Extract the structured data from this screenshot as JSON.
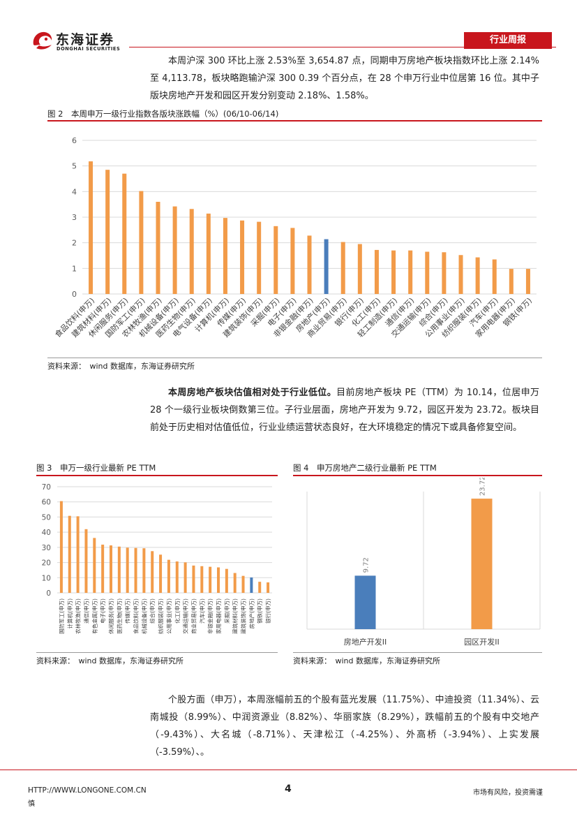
{
  "header": {
    "logo_cn": "东海证券",
    "logo_en": "DONGHAI SECURITIES",
    "report_type": "行业周报"
  },
  "intro": {
    "text": "本周沪深 300 环比上涨 2.53%至 3,654.87 点，同期申万房地产板块指数环比上涨 2.14%至 4,113.78，板块略跑输沪深 300 0.39 个百分点，在 28 个申万行业中位居第 16 位。其中子版块房地产开发和园区开发分别变动 2.18%、1.58%。"
  },
  "fig2": {
    "title": "图 2　本周申万一级行业指数各版块涨跌幅（%）(06/10-06/14)",
    "source": "资料来源：　wind 数据库，东海证券研究所"
  },
  "valuation": {
    "bold": "本周房地产板块估值相对处于行业低位。",
    "text": "目前房地产板块 PE（TTM）为 10.14，位居申万 28 个一级行业板块倒数第三位。子行业层面，房地产开发为 9.72，园区开发为 23.72。板块目前处于历史相对估值低位，行业业绩运营状态良好，在大环境稳定的情况下或具备修复空间。"
  },
  "fig3": {
    "title": "图 3　申万一级行业最新 PE TTM",
    "source": "资料来源：　wind 数据库，东海证券研究所"
  },
  "fig4": {
    "title": "图 4　申万房地产二级行业最新 PE TTM",
    "source": "资料来源：　wind 数据库，东海证券研究所"
  },
  "stocks": {
    "text": "个股方面（申万），本周涨幅前五的个股有蓝光发展（11.75%）、中迪投资（11.34%）、云南城投（8.99%）、中润资源业（8.82%）、华丽家族（8.29%），跌幅前五的个股有中交地产（-9.43%）、大名城（-8.71%）、天津松江（-4.25%）、外高桥（-3.94%）、上实发展（-3.59%）、。"
  },
  "footer": {
    "url": "HTTP://WWW.LONGONE.COM.CN",
    "page": "4",
    "disclaimer": "市场有风险，投资需谨",
    "disclaimer_cont": "慎"
  },
  "colors": {
    "orange": "#f29b49",
    "blue": "#4a7ebb",
    "red": "#c8161d"
  },
  "chart_data": [
    {
      "type": "bar",
      "title": "本周申万一级行业指数各版块涨跌幅（%）(06/10-06/14)",
      "categories": [
        "食品饮料(申万)",
        "建筑材料(申万)",
        "休闲服务(申万)",
        "国防军工(申万)",
        "农林牧渔(申万)",
        "机械设备(申万)",
        "医药生物(申万)",
        "电气设备(申万)",
        "计算机(申万)",
        "传媒(申万)",
        "建筑装饰(申万)",
        "采掘(申万)",
        "电子(申万)",
        "非银金融(申万)",
        "房地产(申万)",
        "商业贸易(申万)",
        "银行(申万)",
        "化工(申万)",
        "轻工制造(申万)",
        "通信(申万)",
        "交通运输(申万)",
        "综合(申万)",
        "公用事业(申万)",
        "纺织服装(申万)",
        "汽车(申万)",
        "家用电器(申万)",
        "钢铁(申万)"
      ],
      "values": [
        5.18,
        4.85,
        4.7,
        4.02,
        3.6,
        3.42,
        3.32,
        3.14,
        2.97,
        2.87,
        2.82,
        2.65,
        2.58,
        2.28,
        2.14,
        2.03,
        1.95,
        1.72,
        1.7,
        1.7,
        1.65,
        1.63,
        1.52,
        1.43,
        1.35,
        0.98,
        0.98
      ],
      "highlight": "房地产(申万)",
      "ylim": [
        0,
        6
      ],
      "yticks": [
        "0",
        "1",
        "2",
        "3",
        "4",
        "5",
        "6"
      ],
      "xlabel": "",
      "ylabel": ""
    },
    {
      "type": "bar",
      "title": "申万一级行业最新 PE TTM",
      "categories": [
        "国防军工(申万)",
        "计算机(申万)",
        "农林牧渔(申万)",
        "通信(申万)",
        "有色金属(申万)",
        "电子(申万)",
        "休闲服务(申万)",
        "医药生物(申万)",
        "传媒(申万)",
        "食品饮料(申万)",
        "机械设备(申万)",
        "综合(申万)",
        "纺织服装(申万)",
        "公用事业(申万)",
        "化工(申万)",
        "交通运输(申万)",
        "商业贸易(申万)",
        "汽车(申万)",
        "非银金融(申万)",
        "家用电器(申万)",
        "采掘(申万)",
        "建筑材料(申万)",
        "建筑装饰(申万)",
        "房地产(申万)",
        "钢铁(申万)",
        "银行(申万)"
      ],
      "values": [
        60.5,
        50.8,
        50.5,
        42.0,
        36.2,
        31.8,
        31.3,
        30.5,
        29.8,
        29.6,
        29.4,
        27.5,
        25.2,
        21.8,
        20.7,
        20.1,
        18.0,
        17.6,
        17.2,
        16.8,
        15.8,
        13.1,
        11.2,
        10.14,
        7.3,
        6.9
      ],
      "highlight": "房地产(申万)",
      "ylim": [
        0,
        70
      ],
      "yticks": [
        "0",
        "10",
        "20",
        "30",
        "40",
        "50",
        "60",
        "70"
      ],
      "xlabel": "",
      "ylabel": ""
    },
    {
      "type": "bar",
      "title": "申万房地产二级行业最新 PE TTM",
      "categories": [
        "房地产开发II",
        "园区开发II"
      ],
      "values": [
        9.72,
        23.72
      ],
      "labels": [
        "9.72",
        "23.72"
      ],
      "ylim": [
        0,
        25
      ],
      "xlabel": "",
      "ylabel": ""
    }
  ]
}
